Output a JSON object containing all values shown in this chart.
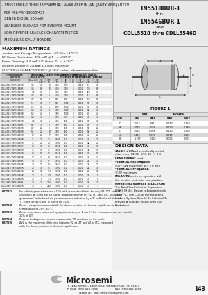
{
  "bg_color": "#e8e8e8",
  "white": "#ffffff",
  "black": "#000000",
  "title_left_lines": [
    "- 1N5518BUR-1 THRU 1N5546BUR-1 AVAILABLE IN JAN, JANTX AND JANTXV",
    "  PER MIL-PRF-19500/437",
    "- ZENER DIODE, 500mW",
    "- LEADLESS PACKAGE FOR SURFACE MOUNT",
    "- LOW REVERSE LEAKAGE CHARACTERISTICS",
    "- METALLURGICALLY BONDED"
  ],
  "title_right_lines": [
    "1N5518BUR-1",
    "thru",
    "1N5546BUR-1",
    "and",
    "CDLL5518 thru CDLL5546D"
  ],
  "max_ratings_title": "MAXIMUM RATINGS",
  "max_ratings_lines": [
    "Junction and Storage Temperature:  -65°C to +175°C",
    "DC Power Dissipation:  500 mW @ T₀₄ = +175°C",
    "Power Derating:  6.6 mW / °C above  T₀₄ = +25°C",
    "Forward Voltage @ 200mA: 1.1 volts maximum"
  ],
  "elec_char_title": "ELECTRICAL CHARACTERISTICS @ 25°C, unless otherwise specified.",
  "figure_title": "FIGURE 1",
  "design_data_title": "DESIGN DATA",
  "design_data_lines": [
    "CASE: DO-213AA, hermetically sealed",
    "glass case. (MELF, SOD-80, LL-34)",
    "LEAD FINISH: Tin / Lead",
    "THERMAL RESISTANCE: (RθJC):37",
    "500 °C/W maximum at 5 x 0 inch",
    "THERMAL IMPEDANCE: (θJC): 44",
    "°C/W maximum",
    "POLARITY: Diode to be operated with",
    "the banded (cathode) end positive.",
    "MOUNTING SURFACE SELECTION:",
    "The Axial Coefficient of Expansion",
    "(COE) Of this Device Is Approximately",
    "4x10⁶/°C. The COE of the Mounting",
    "Surface System Should Be Selected To",
    "Provide A Suitable Match With This",
    "Device."
  ],
  "notes": [
    [
      "NOTE 1",
      "No suffix type numbers are ±10% with guaranteed limits for only VZ, IZT, and IZK."
    ],
    [
      "",
      "Units with 'A' suffix are ±5% with guaranteed limits for VZ, IZT, and IZK. Units with"
    ],
    [
      "",
      "guaranteed limits for all six parameters are indicated by a 'B' suffix for ±5% units,"
    ],
    [
      "",
      "'C' suffix for ±2% and 'D' suffix for ±1%."
    ],
    [
      "NOTE 2",
      "Zener voltage is measured with the device junction in thermal equilibrium at an ambient"
    ],
    [
      "",
      "temperature of 25°C ±1°C."
    ],
    [
      "NOTE 3",
      "Zener impedance is derived by superimposing on 1 mA (f kHz) sine wave a current equal to"
    ],
    [
      "",
      "10% of IZT."
    ],
    [
      "NOTE 4",
      "Reverse leakage currents are measured at VR as shown on the table."
    ],
    [
      "NOTE 5",
      "ΔVZ is the maximum difference between VZ at IZT and VZ at IZK, measured"
    ],
    [
      "",
      "with the device junction in thermal equilibrium."
    ]
  ],
  "footer_lines": [
    "6 LAKE STREET, LAWRENCE, MASSACHUSETTS  01841",
    "PHONE (978) 620-2600                    FAX (978) 689-0803",
    "WEBSITE:  http://www.microsemi.com"
  ],
  "page_num": "143",
  "table_data": [
    [
      "CDLL5518/1N5518BUR",
      "3.3",
      "76",
      "10",
      "400",
      "100",
      "1",
      "0.001",
      "152",
      "76"
    ],
    [
      "CDLL5519/1N5519BUR",
      "3.6",
      "69",
      "10",
      "400",
      "100",
      "1",
      "0.001",
      "138",
      "69"
    ],
    [
      "CDLL5520/1N5520BUR",
      "3.9",
      "64",
      "9",
      "400",
      "100",
      "1",
      "0.001",
      "128",
      "64"
    ],
    [
      "CDLL5521/1N5521BUR",
      "4.3",
      "58",
      "9",
      "400",
      "100",
      "1",
      "0.001",
      "116",
      "58"
    ],
    [
      "CDLL5522/1N5522BUR",
      "4.7",
      "53",
      "8",
      "500",
      "500",
      "1",
      "0.001",
      "106",
      "53"
    ],
    [
      "CDLL5523/1N5523BUR",
      "5.1",
      "49",
      "7",
      "550",
      "1600",
      "1",
      "0.001",
      "98",
      "49"
    ],
    [
      "CDLL5524/1N5524BUR",
      "5.6",
      "45",
      "5",
      "600",
      "1600",
      "1",
      "0.001",
      "90",
      "45"
    ],
    [
      "CDLL5525/1N5525BUR",
      "6.0",
      "41",
      "4",
      "700",
      "1600",
      "2",
      "0.001",
      "82",
      "41"
    ],
    [
      "CDLL5526/1N5526BUR",
      "6.2",
      "40",
      "4",
      "700",
      "1000",
      "2",
      "0.001",
      "80",
      "40"
    ],
    [
      "CDLL5527/1N5527BUR",
      "6.8",
      "37",
      "5",
      "700",
      "750",
      "3",
      "0.001",
      "74",
      "37"
    ],
    [
      "CDLL5528/1N5528BUR",
      "7.5",
      "34",
      "6",
      "700",
      "500",
      "3",
      "0.001",
      "68",
      "34"
    ],
    [
      "CDLL5529/1N5529BUR",
      "8.2",
      "30",
      "8",
      "700",
      "500",
      "4",
      "0.001",
      "60",
      "30"
    ],
    [
      "CDLL5530/1N5530BUR",
      "8.7",
      "28",
      "8",
      "700",
      "500",
      "4",
      "0.001",
      "56",
      "28"
    ],
    [
      "CDLL5531/1N5531BUR",
      "9.1",
      "27",
      "10",
      "700",
      "500",
      "5",
      "0.001",
      "54",
      "27"
    ],
    [
      "CDLL5532/1N5532BUR",
      "10",
      "23",
      "17",
      "700",
      "250",
      "5",
      "0.001",
      "46",
      "23"
    ],
    [
      "CDLL5533/1N5533BUR",
      "11",
      "21",
      "22",
      "1000",
      "250",
      "5",
      "0.001",
      "42",
      "21"
    ],
    [
      "CDLL5534/1N5534BUR",
      "12",
      "21",
      "29",
      "1000",
      "250",
      "5",
      "0.001",
      "42",
      "21"
    ],
    [
      "CDLL5535/1N5535BUR",
      "13",
      "19",
      "33",
      "1000",
      "250",
      "5",
      "0.001",
      "38",
      "19"
    ],
    [
      "CDLL5536/1N5536BUR",
      "15",
      "16",
      "41",
      "1000",
      "250",
      "5",
      "0.001",
      "32",
      "16"
    ],
    [
      "CDLL5537/1N5537BUR",
      "16",
      "15",
      "52",
      "1500",
      "250",
      "5",
      "0.001",
      "30",
      "15"
    ],
    [
      "CDLL5538/1N5538BUR",
      "17",
      "14",
      "60",
      "1500",
      "250",
      "5",
      "0.001",
      "28",
      "14"
    ],
    [
      "CDLL5539/1N5539BUR",
      "18",
      "14",
      "67",
      "1500",
      "250",
      "5",
      "0.001",
      "28",
      "14"
    ],
    [
      "CDLL5540/1N5540BUR",
      "20",
      "12",
      "80",
      "1500",
      "250",
      "5",
      "0.001",
      "24",
      "12"
    ],
    [
      "CDLL5541/1N5541BUR",
      "22",
      "11",
      "96",
      "3000",
      "250",
      "5",
      "0.001",
      "22",
      "11"
    ],
    [
      "CDLL5542/1N5542BUR",
      "24",
      "10",
      "110",
      "3000",
      "250",
      "5",
      "0.001",
      "20",
      "10"
    ],
    [
      "CDLL5543/1N5543BUR",
      "27",
      "9",
      "130",
      "3000",
      "250",
      "5",
      "0.001",
      "18",
      "9"
    ],
    [
      "CDLL5544/1N5544BUR",
      "30",
      "8",
      "170",
      "3000",
      "250",
      "5",
      "0.001",
      "16",
      "8"
    ],
    [
      "CDLL5545/1N5545BUR",
      "33",
      "7.5",
      "200",
      "3000",
      "250",
      "5",
      "0.001",
      "15",
      "7.5"
    ],
    [
      "CDLL5546/1N5546BUR",
      "36",
      "7",
      "220",
      "3000",
      "250",
      "5",
      "0.001",
      "14",
      "7"
    ]
  ],
  "dim_table_data": [
    [
      "D",
      "3.553",
      "3.81",
      "0.140",
      "0.150"
    ],
    [
      "A",
      "3.048",
      "3.556",
      "0.120",
      "0.140"
    ],
    [
      "L",
      "3.048",
      "4.064",
      "0.120",
      "0.160"
    ],
    [
      "d",
      "0.432",
      "0.559",
      "0.017",
      "0.022"
    ],
    [
      "B",
      "1.397",
      "1.905",
      "0.055",
      "0.075"
    ]
  ]
}
